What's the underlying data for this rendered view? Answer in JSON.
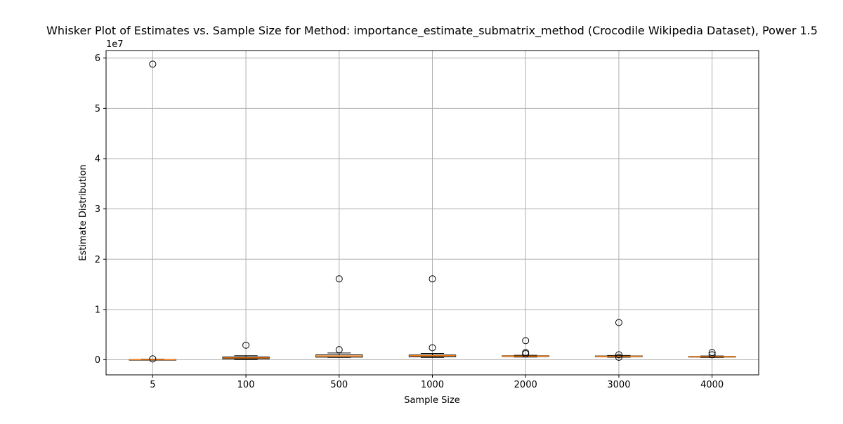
{
  "chart_data": {
    "type": "box",
    "title": "Whisker Plot of Estimates vs. Sample Size for Method: importance_estimate_submatrix_method (Crocodile Wikipedia Dataset), Power 1.5",
    "xlabel": "Sample Size",
    "ylabel": "Estimate Distribution",
    "y_multiplier_label": "1e7",
    "y_unit": 10000000,
    "ylim": [
      -3000000,
      61500000
    ],
    "yticks": [
      0,
      10000000,
      20000000,
      30000000,
      40000000,
      50000000,
      60000000
    ],
    "ytick_labels": [
      "0",
      "1",
      "2",
      "3",
      "4",
      "5",
      "6"
    ],
    "grid": true,
    "colors": {
      "median": "#ff7f0e",
      "box": "#000000",
      "grid": "#b0b0b0"
    },
    "categories": [
      "5",
      "100",
      "500",
      "1000",
      "2000",
      "3000",
      "4000"
    ],
    "boxes": [
      {
        "label": "5",
        "whislo": 0,
        "q1": 0,
        "med": 20000,
        "q3": 60000,
        "whishi": 120000,
        "fliers": [
          58800000,
          180000
        ]
      },
      {
        "label": "100",
        "whislo": 60000,
        "q1": 200000,
        "med": 380000,
        "q3": 560000,
        "whishi": 800000,
        "fliers": [
          2900000
        ]
      },
      {
        "label": "500",
        "whislo": 450000,
        "q1": 520000,
        "med": 760000,
        "q3": 980000,
        "whishi": 1350000,
        "fliers": [
          16100000,
          2000000
        ]
      },
      {
        "label": "1000",
        "whislo": 450000,
        "q1": 620000,
        "med": 800000,
        "q3": 950000,
        "whishi": 1250000,
        "fliers": [
          16100000,
          2400000
        ]
      },
      {
        "label": "2000",
        "whislo": 550000,
        "q1": 640000,
        "med": 720000,
        "q3": 800000,
        "whishi": 900000,
        "fliers": [
          3800000,
          1450000,
          1200000
        ]
      },
      {
        "label": "3000",
        "whislo": 500000,
        "q1": 600000,
        "med": 680000,
        "q3": 760000,
        "whishi": 860000,
        "fliers": [
          7400000,
          1000000,
          500000
        ]
      },
      {
        "label": "4000",
        "whislo": 450000,
        "q1": 530000,
        "med": 600000,
        "q3": 670000,
        "whishi": 750000,
        "fliers": [
          1450000,
          1000000
        ]
      }
    ]
  }
}
